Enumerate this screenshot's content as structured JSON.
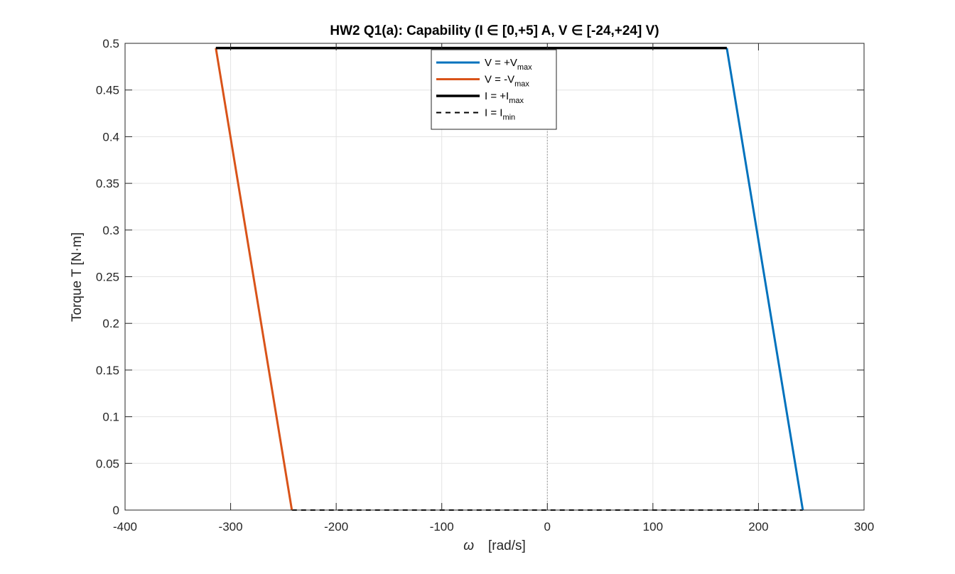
{
  "chart_data": {
    "type": "line",
    "title": "HW2  Q1(a):  Capability  (I  ∈  [0,+5]  A,  V  ∈  [-24,+24]  V)",
    "xlabel_symbol": "ω",
    "xlabel_unit": "[rad/s]",
    "ylabel": "Torque  T  [N·m]",
    "xlim": [
      -400,
      300
    ],
    "ylim": [
      0,
      0.5
    ],
    "xticks": [
      -400,
      -300,
      -200,
      -100,
      0,
      100,
      200,
      300
    ],
    "xtick_labels": [
      "-400",
      "-300",
      "-200",
      "-100",
      "0",
      "100",
      "200",
      "300"
    ],
    "yticks": [
      0,
      0.05,
      0.1,
      0.15,
      0.2,
      0.25,
      0.3,
      0.35,
      0.4,
      0.45,
      0.5
    ],
    "ytick_labels": [
      "0",
      "0.05",
      "0.1",
      "0.15",
      "0.2",
      "0.25",
      "0.3",
      "0.35",
      "0.4",
      "0.45",
      "0.5"
    ],
    "grid": true,
    "zero_line_x": 0,
    "legend_position": "top-center",
    "series": [
      {
        "legend_main": "V  =  +V",
        "legend_sub": "max",
        "color": "#0072BD",
        "style": "solid",
        "width": 3,
        "x": [
          242,
          170
        ],
        "y": [
          0,
          0.495
        ]
      },
      {
        "legend_main": "V  =  -V",
        "legend_sub": "max",
        "color": "#D95319",
        "style": "solid",
        "width": 3,
        "x": [
          -242,
          -314
        ],
        "y": [
          0,
          0.495
        ]
      },
      {
        "legend_main": "I  =  +I",
        "legend_sub": "max",
        "color": "#000000",
        "style": "solid",
        "width": 3.5,
        "x": [
          -314,
          170
        ],
        "y": [
          0.495,
          0.495
        ]
      },
      {
        "legend_main": "I  =  I",
        "legend_sub": "min",
        "color": "#000000",
        "style": "dashed",
        "width": 2,
        "x": [
          -242,
          242
        ],
        "y": [
          0,
          0
        ]
      }
    ]
  }
}
